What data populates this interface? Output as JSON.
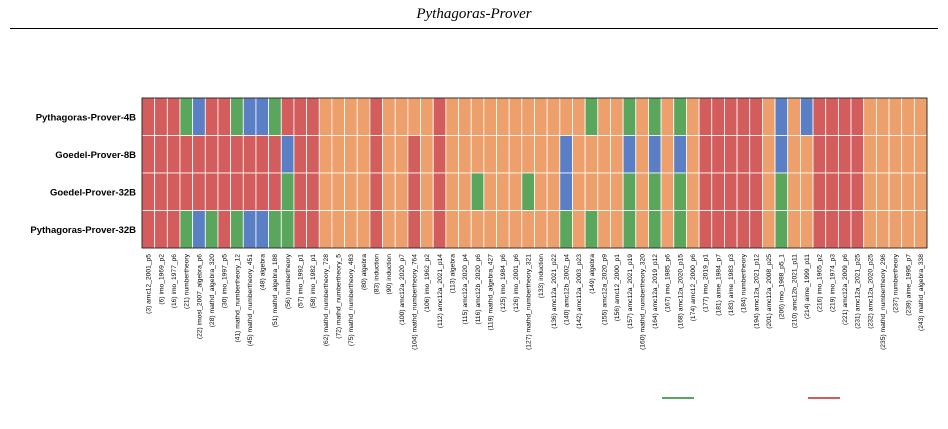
{
  "header": {
    "title": "Pythagoras-Prover"
  },
  "colors": {
    "green": "#5aa65d",
    "blue": "#5a7fc4",
    "orange": "#eda06b",
    "red": "#d35d5d",
    "grid": "#ffffff",
    "frame": "#000000"
  },
  "chart_data": {
    "type": "heatmap",
    "title": "Pythagoras-Prover",
    "rows": [
      "Pythagoras-Prover-4B",
      "Goedel-Prover-8B",
      "Goedel-Prover-32B",
      "Pythagoras-Prover-32B"
    ],
    "columns": [
      "(3) amc12_2001_p5",
      "(6) imo_1969_p2",
      "(16) imo_1977_p6",
      "(21) numbertheory",
      "(22) imosl_2007_algebra_p6",
      "(28) mathd_algebra_320",
      "(30) imo_1997_p5",
      "(41) mathd_numbertheory_12",
      "(45) mathd_numbertheory_451",
      "(48) algebra",
      "(51) mathd_algebra_188",
      "(56) numbertheory",
      "(57) imo_1992_p1",
      "(58) imo_1982_p1",
      "(62) mathd_numbertheory_728",
      "(72) mathd_numbertheory_5",
      "(75) mathd_numbertheory_483",
      "(80) algebra",
      "(83) induction",
      "(90) induction",
      "(100) amc12a_2020_p7",
      "(104) mathd_numbertheory_764",
      "(106) imo_1962_p2",
      "(112) amc12a_2021_p14",
      "(113) algebra",
      "(115) amc12a_2020_p4",
      "(116) amc12b_2020_p6",
      "(119) mathd_algebra_427",
      "(125) imo_1984_p6",
      "(126) imo_2001_p6",
      "(127) mathd_numbertheory_321",
      "(133) induction",
      "(136) amc12a_2021_p22",
      "(140) amc12b_2002_p4",
      "(142) amc12a_2003_p23",
      "(149) algebra",
      "(155) amc12a_2020_p9",
      "(156) amc12_2000_p1",
      "(157) amc12a_2021_p19",
      "(160) mathd_numbertheory_320",
      "(164) amc12a_2019_p12",
      "(167) imo_1985_p6",
      "(168) amc12a_2020_p15",
      "(174) amc12_2000_p6",
      "(177) imo_2019_p1",
      "(181) aime_1984_p7",
      "(183) aime_1983_p3",
      "(184) numbertheory",
      "(194) amc12a_2021_p12",
      "(201) amc12a_2008_p25",
      "(206) imo_1988_p5_1",
      "(210) amc12b_2021_p11",
      "(214) aime_1999_p11",
      "(216) imo_1965_p2",
      "(219) imo_1974_p3",
      "(221) amc12a_2009_p6",
      "(231) amc12a_2021_p25",
      "(232) amc12a_2020_p25",
      "(235) mathd_numbertheory_296",
      "(237) numbertheory",
      "(239) aime_1995_p7",
      "(243) mathd_algebra_338"
    ],
    "legend_placement": "bottom-right",
    "grid": true,
    "values": [
      [
        "R",
        "R",
        "R",
        "G",
        "B",
        "R",
        "R",
        "G",
        "B",
        "B",
        "G",
        "R",
        "R",
        "R",
        "O",
        "O",
        "O",
        "O",
        "R",
        "O",
        "O",
        "O",
        "O",
        "R",
        "O",
        "O",
        "O",
        "O",
        "O",
        "O",
        "O",
        "O",
        "O",
        "O",
        "O",
        "G",
        "O",
        "O",
        "G",
        "O",
        "G",
        "O",
        "G",
        "O",
        "R",
        "R",
        "R",
        "R",
        "R",
        "O",
        "B",
        "O",
        "B",
        "R",
        "R",
        "R",
        "R",
        "O",
        "O",
        "O",
        "O",
        "O"
      ],
      [
        "R",
        "R",
        "R",
        "R",
        "R",
        "R",
        "R",
        "R",
        "R",
        "R",
        "R",
        "B",
        "R",
        "R",
        "O",
        "O",
        "O",
        "O",
        "R",
        "O",
        "O",
        "R",
        "O",
        "R",
        "O",
        "O",
        "O",
        "O",
        "O",
        "O",
        "O",
        "O",
        "O",
        "B",
        "O",
        "O",
        "O",
        "O",
        "B",
        "O",
        "B",
        "O",
        "B",
        "O",
        "R",
        "R",
        "R",
        "R",
        "R",
        "O",
        "B",
        "O",
        "O",
        "R",
        "R",
        "R",
        "R",
        "O",
        "O",
        "O",
        "O",
        "O"
      ],
      [
        "R",
        "R",
        "R",
        "R",
        "R",
        "R",
        "R",
        "R",
        "R",
        "R",
        "R",
        "G",
        "R",
        "R",
        "O",
        "O",
        "O",
        "O",
        "R",
        "O",
        "O",
        "R",
        "O",
        "R",
        "O",
        "O",
        "G",
        "O",
        "O",
        "O",
        "G",
        "O",
        "O",
        "B",
        "O",
        "O",
        "O",
        "O",
        "G",
        "O",
        "G",
        "O",
        "G",
        "O",
        "R",
        "R",
        "R",
        "R",
        "R",
        "O",
        "G",
        "O",
        "O",
        "R",
        "R",
        "R",
        "R",
        "O",
        "O",
        "O",
        "O",
        "O"
      ],
      [
        "R",
        "R",
        "R",
        "G",
        "B",
        "G",
        "R",
        "G",
        "B",
        "B",
        "G",
        "G",
        "R",
        "R",
        "O",
        "O",
        "O",
        "O",
        "R",
        "O",
        "O",
        "R",
        "O",
        "R",
        "O",
        "O",
        "O",
        "O",
        "O",
        "O",
        "O",
        "O",
        "O",
        "G",
        "O",
        "G",
        "O",
        "O",
        "G",
        "O",
        "G",
        "O",
        "G",
        "O",
        "R",
        "R",
        "R",
        "R",
        "R",
        "O",
        "G",
        "O",
        "O",
        "R",
        "R",
        "R",
        "R",
        "O",
        "O",
        "O",
        "O",
        "O"
      ]
    ],
    "value_key": {
      "G": "green",
      "B": "blue",
      "O": "orange",
      "R": "red"
    }
  }
}
